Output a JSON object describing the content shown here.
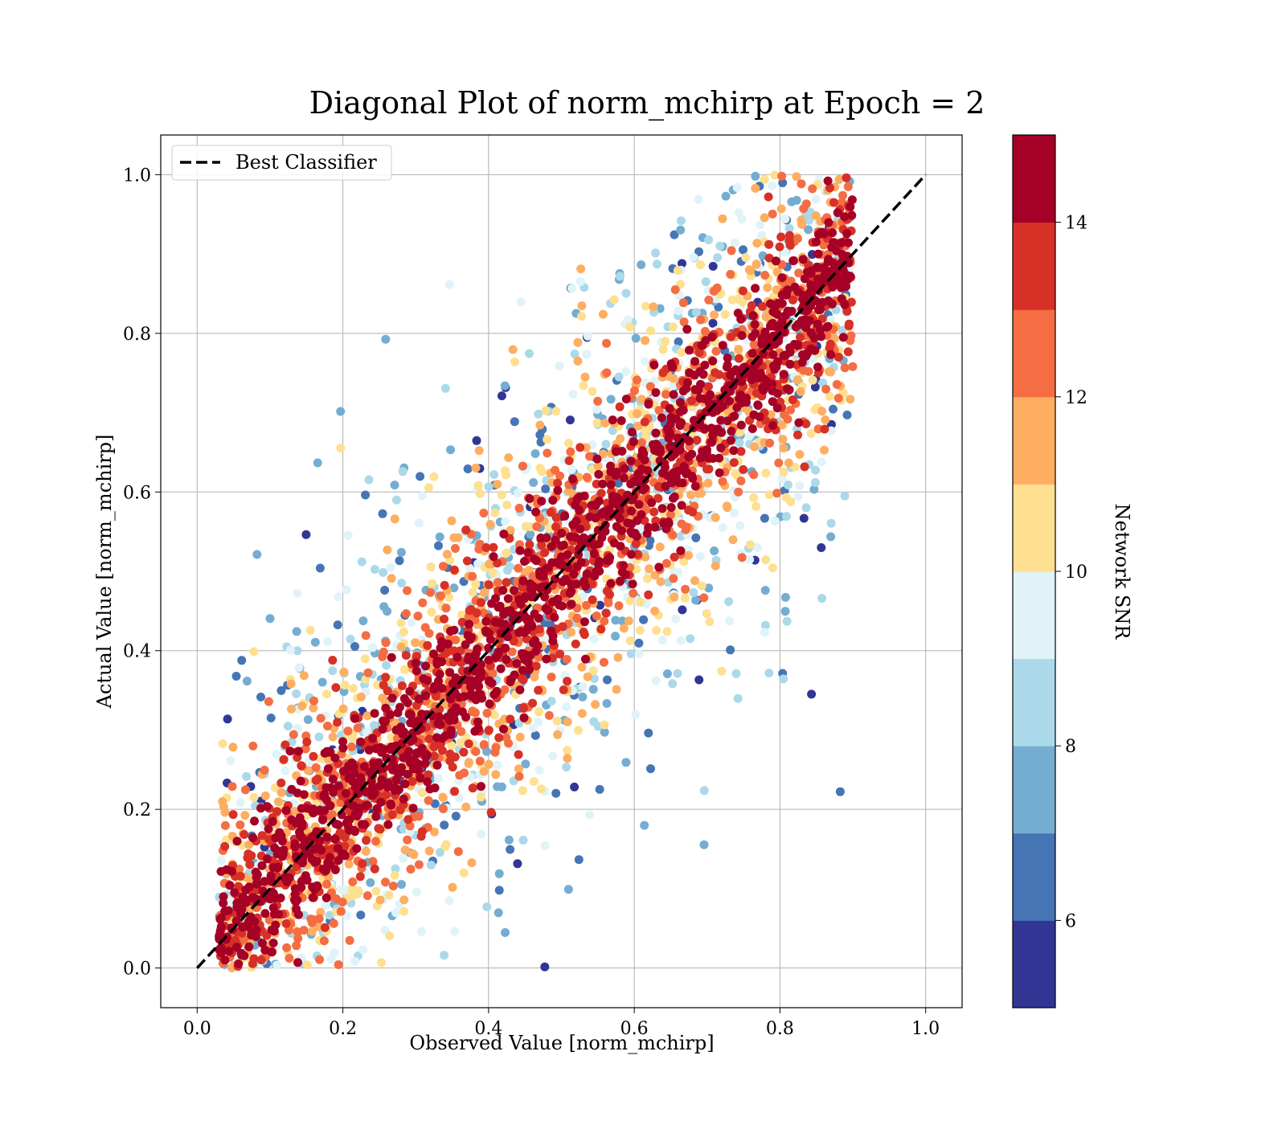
{
  "chart_data": {
    "type": "scatter",
    "title": "Diagonal Plot of norm_mchirp at Epoch = 2",
    "xlabel": "Observed Value [norm_mchirp]",
    "ylabel": "Actual Value [norm_mchirp]",
    "xlim": [
      -0.05,
      1.05
    ],
    "ylim": [
      -0.05,
      1.05
    ],
    "x_ticks": [
      "0.0",
      "0.2",
      "0.4",
      "0.6",
      "0.8",
      "1.0"
    ],
    "y_ticks": [
      "0.0",
      "0.2",
      "0.4",
      "0.6",
      "0.8",
      "1.0"
    ],
    "grid": true,
    "legend": {
      "placement": "top-left",
      "entries": [
        "Best Classifier"
      ]
    },
    "reference_line": {
      "name": "Best Classifier",
      "style": "dashed",
      "color": "#000000",
      "x": [
        0,
        1
      ],
      "y": [
        0,
        1
      ]
    },
    "colorbar": {
      "label": "Network SNR",
      "range": [
        5,
        15
      ],
      "ticks": [
        "6",
        "8",
        "10",
        "12",
        "14"
      ],
      "levels": [
        5,
        6,
        7,
        8,
        9,
        10,
        11,
        12,
        13,
        14,
        15
      ],
      "colors": [
        "#313695",
        "#4575b4",
        "#74add1",
        "#abd9e9",
        "#e0f3f8",
        "#fee090",
        "#fdae61",
        "#f46d43",
        "#d73027",
        "#a50026"
      ]
    },
    "scatter_description": {
      "x_range": [
        0.03,
        0.9
      ],
      "y_range": [
        0.0,
        1.0
      ],
      "high_snr_band_halfwidth": 0.07,
      "low_snr_spread": 0.35
    }
  }
}
